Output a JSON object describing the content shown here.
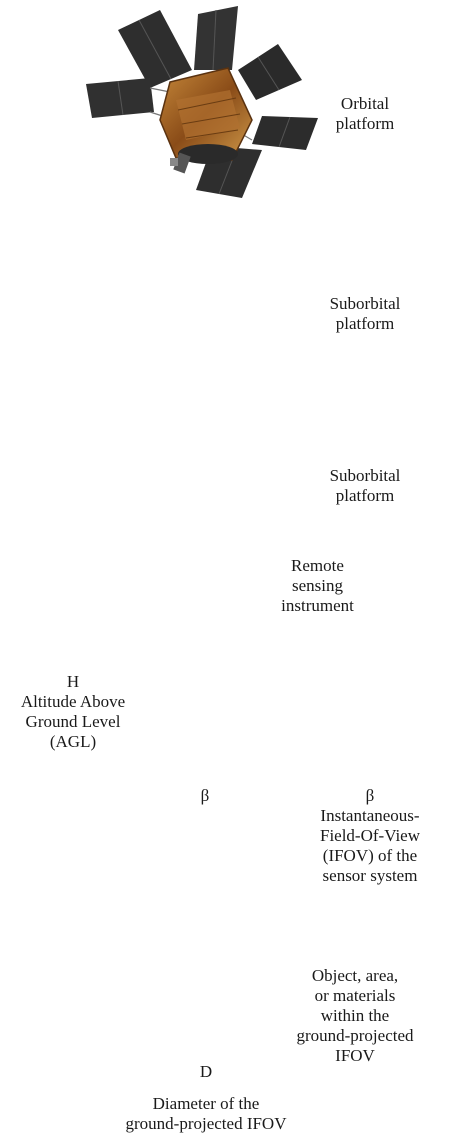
{
  "labels": {
    "orbital": [
      "Orbital",
      "platform"
    ],
    "suborbital_jet": [
      "Suborbital",
      "platform"
    ],
    "suborbital_heli": [
      "Suborbital",
      "platform"
    ],
    "instrument": [
      "Remote",
      "sensing",
      "instrument"
    ],
    "altitude": [
      "H",
      "Altitude Above",
      "Ground Level",
      "(AGL)"
    ],
    "beta_symbol": "β",
    "ifov": [
      "β",
      "Instantaneous-",
      "Field-Of-View",
      "(IFOV) of the",
      "sensor system"
    ],
    "object": [
      "Object, area,",
      "or materials",
      "within the",
      "ground-projected",
      "IFOV"
    ],
    "diameter_symbol": "D",
    "diameter": [
      "Diameter of the",
      "ground-projected IFOV"
    ]
  },
  "colors": {
    "satellite_panel": "#2e2e2e",
    "satellite_body": "#a86a2a",
    "jet_camo_light": "#9aa04a",
    "jet_camo_dark": "#5a6a2c",
    "jet_nose": "#2a2a2a",
    "helicopter": "#141414",
    "ground_disk": "#dcef8c",
    "palm_leaf": "#1ca03a",
    "palm_trunk": "#b07a2a"
  }
}
